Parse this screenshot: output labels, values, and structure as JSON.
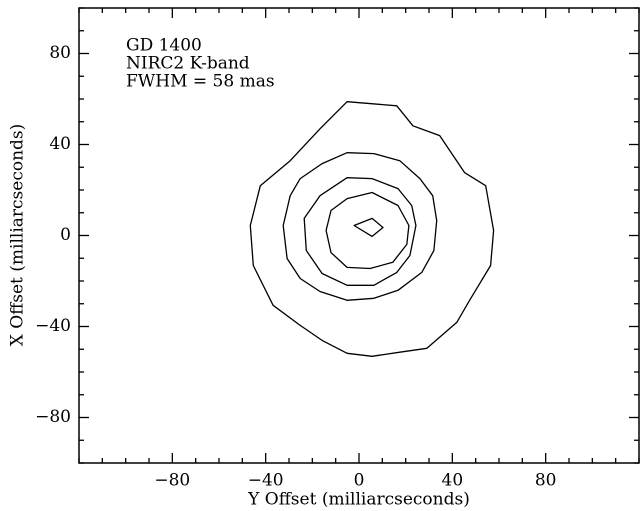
{
  "chart_data": {
    "type": "contour",
    "annotations": [
      "GD 1400",
      "NIRC2 K-band",
      "FWHM = 58 mas"
    ],
    "x_label": "Y Offset (milliarcseconds)",
    "y_label": "X Offset (milliarcseconds)",
    "xlim": [
      -120,
      120
    ],
    "ylim": [
      -100,
      100
    ],
    "xticks": [
      {
        "value": -80,
        "label": "−80"
      },
      {
        "value": -40,
        "label": "−40"
      },
      0,
      40,
      80
    ],
    "yticks": [
      {
        "value": -80,
        "label": "−80"
      },
      {
        "value": -40,
        "label": "−40"
      },
      0,
      40,
      80
    ],
    "minor_ticks": true,
    "mirror_ticks": true,
    "color": "#000000",
    "series": [
      {
        "x": [
          -5.1,
          16.2,
          23.1,
          34.6,
          45.3,
          54.3,
          57.7,
          56.4,
          47.4,
          41.9,
          29.1,
          17.5,
          5.6,
          -5.1,
          -15.8,
          -25.2,
          -36.8,
          -45.3,
          -46.6,
          -42.3,
          -29.5,
          -16.7
        ],
        "values": [
          58.8,
          57.0,
          48.2,
          43.9,
          27.6,
          21.9,
          2.2,
          -13.2,
          -28.5,
          -38.2,
          -49.6,
          -51.3,
          -53.1,
          -51.8,
          -46.1,
          -39.5,
          -30.7,
          -13.2,
          4.4,
          21.9,
          32.9,
          46.9
        ]
      },
      {
        "x": [
          -5.1,
          6.4,
          17.5,
          26.1,
          31.6,
          33.3,
          32.1,
          26.9,
          16.7,
          6.4,
          -5.1,
          -16.7,
          -25.2,
          -30.8,
          -32.5,
          -29.5,
          -25.2,
          -15.8
        ],
        "values": [
          36.4,
          36.0,
          32.9,
          25.0,
          17.5,
          6.6,
          -6.6,
          -16.2,
          -24.1,
          -27.6,
          -28.5,
          -24.6,
          -18.9,
          -10.1,
          4.4,
          17.5,
          25.0,
          31.6
        ]
      },
      {
        "x": [
          -5.1,
          5.6,
          16.7,
          22.6,
          24.4,
          21.8,
          16.2,
          6.4,
          -5.1,
          -15.8,
          -22.6,
          -23.5,
          -16.7
        ],
        "values": [
          25.4,
          25.0,
          20.6,
          13.2,
          4.4,
          -8.8,
          -16.2,
          -21.9,
          -21.9,
          -16.7,
          -6.6,
          7.5,
          17.5
        ]
      },
      {
        "x": [
          -5.1,
          5.6,
          16.7,
          21.4,
          20.5,
          14.5,
          4.7,
          -5.1,
          -12.0,
          -14.1,
          -12.0
        ],
        "values": [
          16.2,
          18.9,
          13.2,
          4.4,
          -3.9,
          -11.8,
          -14.5,
          -14.0,
          -7.5,
          2.2,
          11.0
        ]
      },
      {
        "x": [
          -2.1,
          5.6,
          10.3,
          5.6
        ],
        "values": [
          4.4,
          7.5,
          3.5,
          -0.4
        ]
      }
    ]
  }
}
